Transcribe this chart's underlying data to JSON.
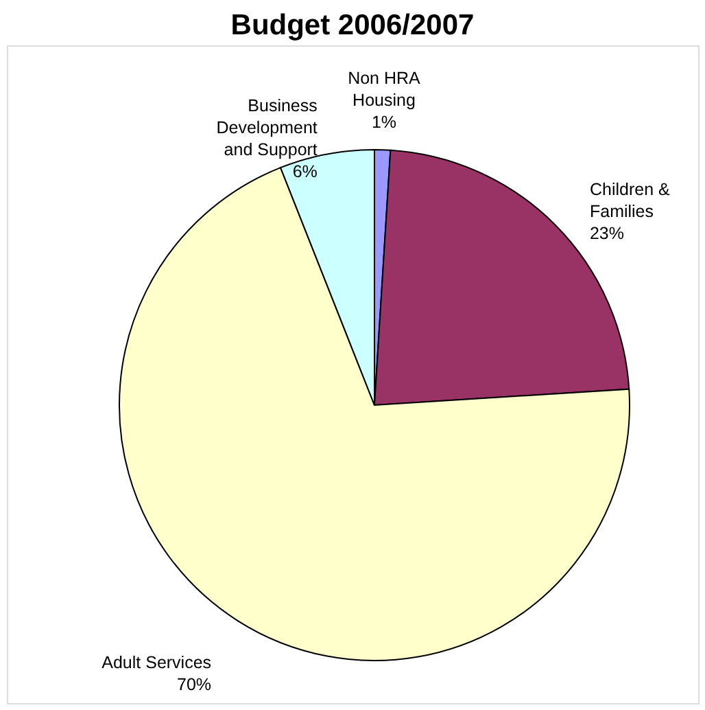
{
  "chart_data": {
    "type": "pie",
    "title": "Budget 2006/2007",
    "categories": [
      "Non HRA Housing",
      "Children & Families",
      "Adult Services",
      "Business Development and Support"
    ],
    "values": [
      1,
      23,
      70,
      6
    ],
    "value_labels": [
      "1%",
      "23%",
      "70%",
      "6%"
    ],
    "colors": [
      "#9999ff",
      "#993366",
      "#ffffcc",
      "#ccffff"
    ]
  }
}
